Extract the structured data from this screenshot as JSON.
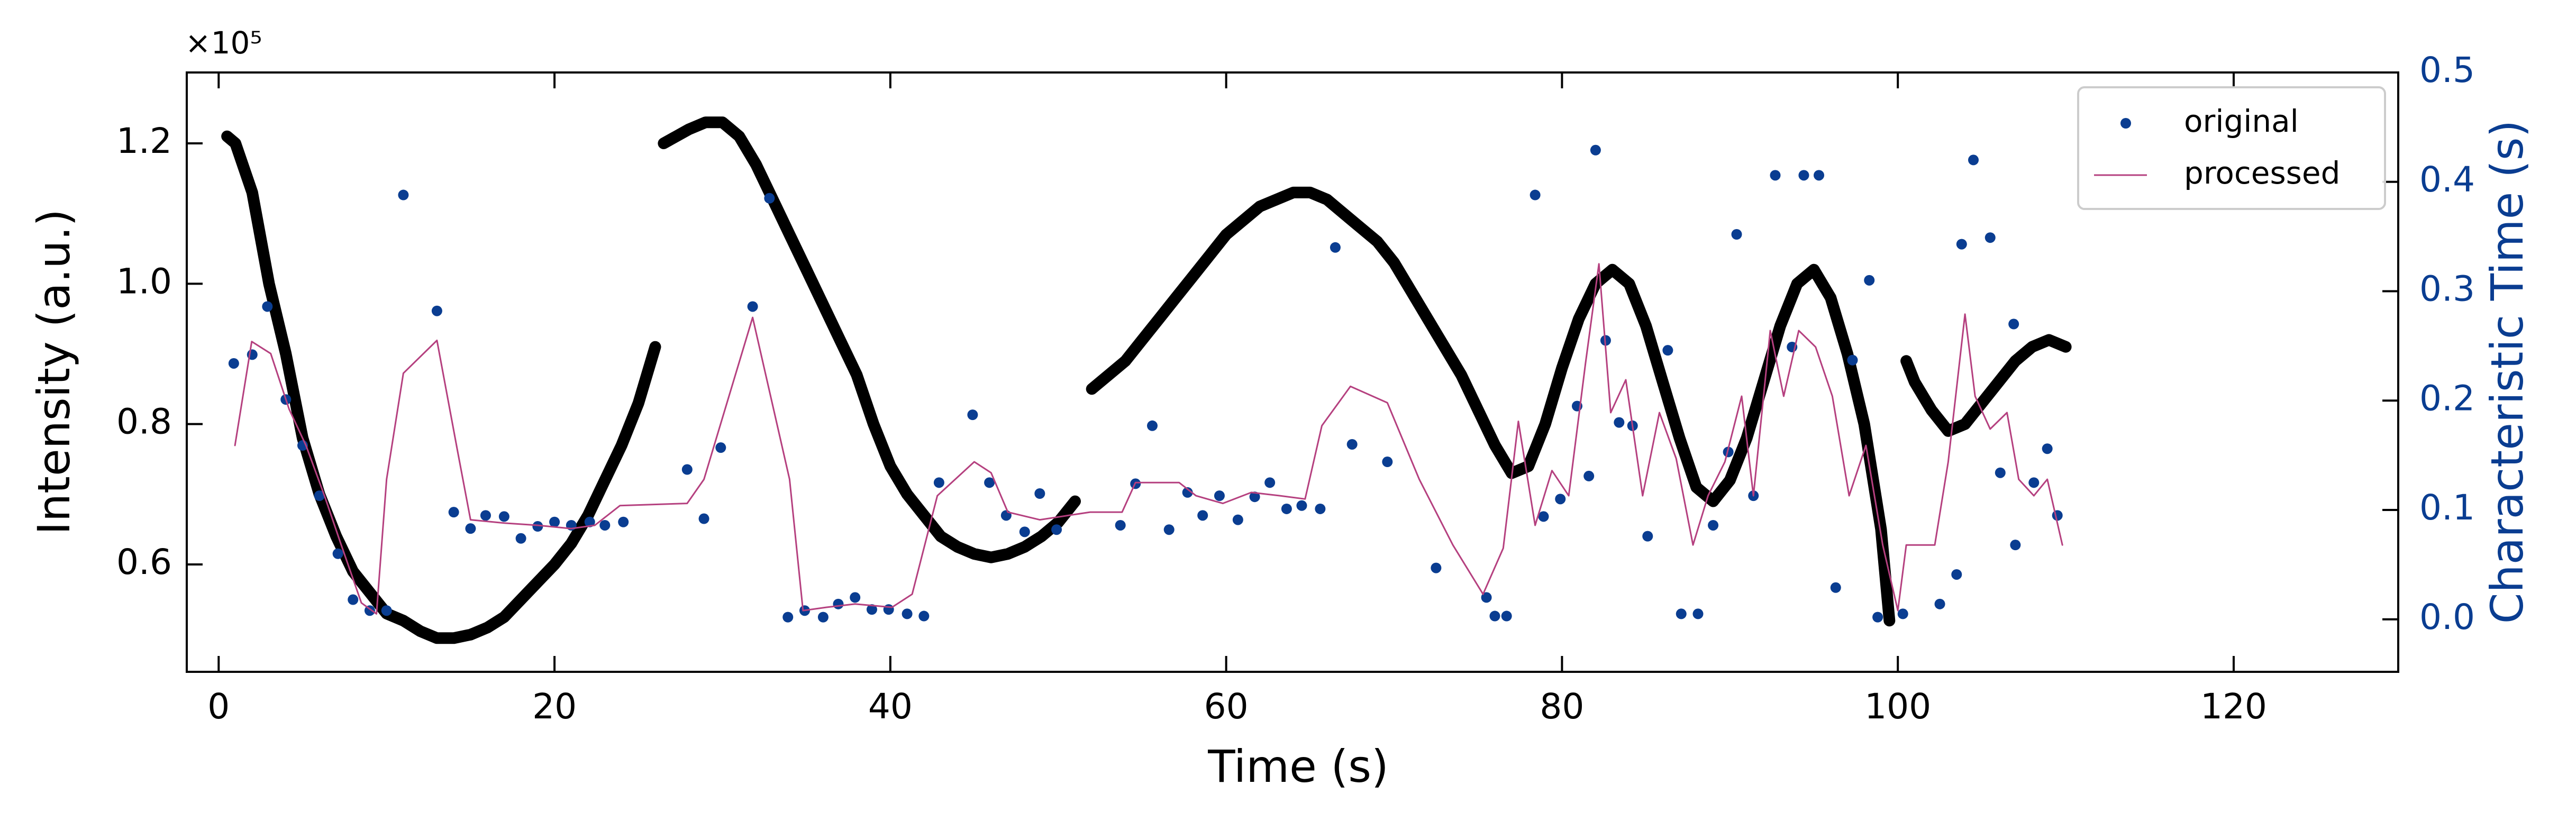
{
  "chart_data": {
    "type": "scatter",
    "x_label": "Time (s)",
    "y_label": "Intensity (a.u.)",
    "y2_label": "Characteristic Time (s)",
    "y_offset_label": "×10⁵",
    "xlim": [
      -1.9,
      129.8
    ],
    "ylim": [
      0.447,
      1.301
    ],
    "y2lim": [
      -0.048,
      0.5
    ],
    "xticks": [
      0,
      20,
      40,
      60,
      80,
      100,
      120
    ],
    "yticks": [
      0.6,
      0.8,
      {
        "value": 1.0,
        "label": "1.0"
      },
      1.2
    ],
    "y2ticks": [
      {
        "value": 0,
        "label": "0.0"
      },
      0.1,
      0.2,
      0.3,
      0.4,
      0.5
    ],
    "y2_color": "#0a3d91",
    "legend": "upper right",
    "series": [
      {
        "type": "line",
        "color": "#000000",
        "x": [
          0.5,
          1,
          2,
          3,
          4,
          5,
          6,
          7,
          8,
          9,
          10,
          11,
          12,
          13,
          14,
          15,
          16,
          17,
          18,
          19,
          20,
          21,
          22,
          23,
          24,
          25,
          26,
          null,
          26.5,
          28,
          29,
          30,
          31,
          32,
          33,
          34,
          35,
          36,
          37,
          38,
          39,
          40,
          41,
          42,
          43,
          44,
          45,
          46,
          47,
          48,
          49,
          50,
          51,
          null,
          52,
          53,
          54,
          55,
          56,
          57,
          58,
          59,
          60,
          61,
          62,
          63,
          64,
          65,
          66,
          67,
          68,
          69,
          70,
          71,
          72,
          73,
          74,
          75,
          76,
          77,
          78,
          79,
          80,
          81,
          82,
          83,
          84,
          85,
          86,
          87,
          88,
          89,
          90,
          91,
          92,
          93,
          94,
          95,
          96,
          97,
          98,
          99,
          99.5,
          null,
          100.5,
          101,
          102,
          103,
          104,
          105,
          106,
          107,
          108,
          109,
          110
        ],
        "values": [
          1.21,
          1.2,
          1.13,
          1.0,
          0.9,
          0.78,
          0.7,
          0.64,
          0.59,
          0.56,
          0.53,
          0.52,
          0.505,
          0.495,
          0.495,
          0.5,
          0.51,
          0.525,
          0.55,
          0.575,
          0.6,
          0.63,
          0.67,
          0.72,
          0.77,
          0.83,
          0.91,
          null,
          1.2,
          1.22,
          1.23,
          1.23,
          1.21,
          1.17,
          1.12,
          1.07,
          1.02,
          0.97,
          0.92,
          0.87,
          0.8,
          0.74,
          0.7,
          0.67,
          0.64,
          0.625,
          0.615,
          0.61,
          0.615,
          0.625,
          0.64,
          0.66,
          0.69,
          null,
          0.85,
          0.87,
          0.89,
          0.92,
          0.95,
          0.98,
          1.01,
          1.04,
          1.07,
          1.09,
          1.11,
          1.12,
          1.13,
          1.13,
          1.12,
          1.1,
          1.08,
          1.06,
          1.03,
          0.99,
          0.95,
          0.91,
          0.87,
          0.82,
          0.77,
          0.73,
          0.74,
          0.8,
          0.88,
          0.95,
          1.0,
          1.02,
          1.0,
          0.94,
          0.86,
          0.78,
          0.71,
          0.69,
          0.72,
          0.78,
          0.86,
          0.94,
          1.0,
          1.02,
          0.98,
          0.9,
          0.8,
          0.65,
          0.52,
          null,
          0.89,
          0.86,
          0.82,
          0.79,
          0.8,
          0.83,
          0.86,
          0.89,
          0.91,
          0.92,
          0.91
        ]
      },
      {
        "type": "scatter",
        "name": "original",
        "color": "#0a3d91",
        "axis": "y2",
        "x": [
          0.9,
          2.0,
          2.9,
          4.0,
          5.0,
          6.0,
          7.1,
          8.0,
          9.0,
          10.0,
          11.0,
          13.0,
          14.0,
          15.0,
          15.9,
          17.0,
          18.0,
          19.0,
          20.0,
          21.0,
          22.1,
          23.0,
          24.1,
          27.9,
          28.9,
          29.9,
          31.8,
          32.8,
          33.9,
          34.9,
          36.0,
          36.9,
          37.9,
          38.9,
          39.9,
          41.0,
          42.0,
          42.9,
          44.9,
          45.9,
          46.9,
          48.0,
          48.9,
          49.9,
          53.7,
          54.6,
          55.6,
          56.6,
          57.7,
          58.6,
          59.6,
          60.7,
          61.7,
          62.6,
          63.6,
          64.5,
          65.6,
          66.5,
          67.5,
          69.6,
          72.5,
          75.5,
          76.0,
          76.7,
          78.4,
          78.9,
          79.9,
          80.9,
          81.6,
          82.0,
          82.6,
          83.4,
          84.2,
          85.1,
          86.3,
          87.1,
          88.1,
          89.0,
          89.9,
          90.4,
          91.4,
          92.7,
          93.7,
          94.4,
          95.3,
          96.3,
          97.3,
          98.3,
          98.8,
          100.3,
          102.5,
          103.5,
          103.8,
          104.5,
          105.5,
          106.1,
          106.9,
          107.0,
          108.1,
          108.9,
          109.5
        ],
        "values": [
          0.234,
          0.242,
          0.286,
          0.201,
          0.159,
          0.113,
          0.06,
          0.018,
          0.008,
          0.008,
          0.388,
          0.282,
          0.098,
          0.083,
          0.095,
          0.094,
          0.074,
          0.085,
          0.089,
          0.086,
          0.089,
          0.086,
          0.089,
          0.137,
          0.092,
          0.157,
          0.286,
          0.385,
          0.002,
          0.008,
          0.002,
          0.014,
          0.02,
          0.009,
          0.009,
          0.005,
          0.003,
          0.125,
          0.187,
          0.125,
          0.095,
          0.08,
          0.115,
          0.082,
          0.086,
          0.124,
          0.177,
          0.082,
          0.116,
          0.095,
          0.113,
          0.091,
          0.112,
          0.125,
          0.101,
          0.104,
          0.101,
          0.34,
          0.16,
          0.144,
          0.047,
          0.02,
          0.003,
          0.003,
          0.388,
          0.094,
          0.11,
          0.195,
          0.131,
          0.429,
          0.255,
          0.18,
          0.177,
          0.076,
          0.246,
          0.005,
          0.005,
          0.086,
          0.153,
          0.352,
          0.113,
          0.406,
          0.249,
          0.406,
          0.406,
          0.029,
          0.237,
          0.31,
          0.002,
          0.005,
          0.014,
          0.041,
          0.343,
          0.42,
          0.349,
          0.134,
          0.27,
          0.068,
          0.125,
          0.156,
          0.095
        ]
      },
      {
        "type": "line",
        "name": "processed",
        "color": "#b5407f",
        "axis": "y2",
        "x": [
          0.97,
          1.97,
          3.1,
          4.2,
          5.2,
          6.3,
          7.3,
          8.5,
          9.4,
          10.0,
          11.0,
          13.0,
          14.2,
          15.0,
          17.0,
          19.0,
          21.0,
          22.4,
          23.9,
          27.9,
          28.9,
          31.8,
          34.0,
          34.8,
          36.2,
          37.9,
          40.1,
          41.3,
          42.8,
          45.0,
          46.0,
          47.0,
          48.9,
          51.9,
          53.8,
          54.6,
          55.8,
          57.2,
          58.2,
          59.8,
          61.5,
          63.2,
          64.7,
          65.7,
          67.4,
          69.6,
          71.5,
          73.5,
          75.3,
          76.5,
          77.4,
          78.4,
          79.4,
          80.4,
          81.4,
          82.2,
          82.9,
          83.8,
          84.8,
          85.8,
          86.8,
          87.8,
          88.7,
          89.7,
          90.7,
          91.4,
          92.4,
          93.2,
          94.1,
          95.1,
          96.1,
          97.1,
          98.1,
          99.1,
          100.0,
          100.5,
          102.2,
          103.0,
          104.0,
          104.6,
          105.5,
          106.5,
          107.2,
          108.1,
          108.9,
          109.8
        ],
        "values": [
          0.159,
          0.254,
          0.243,
          0.192,
          0.159,
          0.113,
          0.068,
          0.015,
          0.005,
          0.128,
          0.225,
          0.255,
          0.156,
          0.091,
          0.088,
          0.086,
          0.083,
          0.086,
          0.104,
          0.106,
          0.128,
          0.276,
          0.128,
          0.008,
          0.011,
          0.014,
          0.011,
          0.023,
          0.113,
          0.144,
          0.134,
          0.098,
          0.091,
          0.098,
          0.098,
          0.125,
          0.125,
          0.125,
          0.113,
          0.106,
          0.116,
          0.113,
          0.11,
          0.177,
          0.213,
          0.198,
          0.128,
          0.068,
          0.023,
          0.065,
          0.181,
          0.086,
          0.136,
          0.113,
          0.234,
          0.325,
          0.189,
          0.219,
          0.113,
          0.189,
          0.147,
          0.068,
          0.113,
          0.144,
          0.204,
          0.113,
          0.264,
          0.204,
          0.264,
          0.249,
          0.204,
          0.113,
          0.159,
          0.068,
          0.008,
          0.068,
          0.068,
          0.144,
          0.279,
          0.204,
          0.174,
          0.189,
          0.128,
          0.113,
          0.128,
          0.068
        ]
      }
    ]
  }
}
